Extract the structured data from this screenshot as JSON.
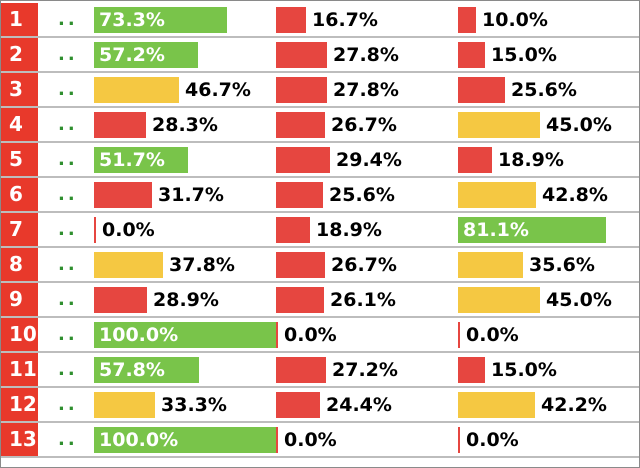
{
  "colors": {
    "green": "#79c44a",
    "red": "#e64640",
    "yellow": "#f5c842",
    "row_number_bg": "#e8392b",
    "dots": "#2f8f2f"
  },
  "rows": [
    {
      "num": "1",
      "dots": "..",
      "cells": [
        {
          "label": "73.3%",
          "value": 73.3,
          "color": "green"
        },
        {
          "label": "16.7%",
          "value": 16.7,
          "color": "red"
        },
        {
          "label": "10.0%",
          "value": 10.0,
          "color": "red"
        }
      ]
    },
    {
      "num": "2",
      "dots": "..",
      "cells": [
        {
          "label": "57.2%",
          "value": 57.2,
          "color": "green"
        },
        {
          "label": "27.8%",
          "value": 27.8,
          "color": "red"
        },
        {
          "label": "15.0%",
          "value": 15.0,
          "color": "red"
        }
      ]
    },
    {
      "num": "3",
      "dots": "..",
      "cells": [
        {
          "label": "46.7%",
          "value": 46.7,
          "color": "yellow"
        },
        {
          "label": "27.8%",
          "value": 27.8,
          "color": "red"
        },
        {
          "label": "25.6%",
          "value": 25.6,
          "color": "red"
        }
      ]
    },
    {
      "num": "4",
      "dots": "..",
      "cells": [
        {
          "label": "28.3%",
          "value": 28.3,
          "color": "red"
        },
        {
          "label": "26.7%",
          "value": 26.7,
          "color": "red"
        },
        {
          "label": "45.0%",
          "value": 45.0,
          "color": "yellow"
        }
      ]
    },
    {
      "num": "5",
      "dots": "..",
      "cells": [
        {
          "label": "51.7%",
          "value": 51.7,
          "color": "green"
        },
        {
          "label": "29.4%",
          "value": 29.4,
          "color": "red"
        },
        {
          "label": "18.9%",
          "value": 18.9,
          "color": "red"
        }
      ]
    },
    {
      "num": "6",
      "dots": "..",
      "cells": [
        {
          "label": "31.7%",
          "value": 31.7,
          "color": "red"
        },
        {
          "label": "25.6%",
          "value": 25.6,
          "color": "red"
        },
        {
          "label": "42.8%",
          "value": 42.8,
          "color": "yellow"
        }
      ]
    },
    {
      "num": "7",
      "dots": "..",
      "cells": [
        {
          "label": "0.0%",
          "value": 0.0,
          "color": "red"
        },
        {
          "label": "18.9%",
          "value": 18.9,
          "color": "red"
        },
        {
          "label": "81.1%",
          "value": 81.1,
          "color": "green"
        }
      ]
    },
    {
      "num": "8",
      "dots": "..",
      "cells": [
        {
          "label": "37.8%",
          "value": 37.8,
          "color": "yellow"
        },
        {
          "label": "26.7%",
          "value": 26.7,
          "color": "red"
        },
        {
          "label": "35.6%",
          "value": 35.6,
          "color": "yellow"
        }
      ]
    },
    {
      "num": "9",
      "dots": "..",
      "cells": [
        {
          "label": "28.9%",
          "value": 28.9,
          "color": "red"
        },
        {
          "label": "26.1%",
          "value": 26.1,
          "color": "red"
        },
        {
          "label": "45.0%",
          "value": 45.0,
          "color": "yellow"
        }
      ]
    },
    {
      "num": "10",
      "dots": "..",
      "cells": [
        {
          "label": "100.0%",
          "value": 100.0,
          "color": "green"
        },
        {
          "label": "0.0%",
          "value": 0.0,
          "color": "red"
        },
        {
          "label": "0.0%",
          "value": 0.0,
          "color": "red"
        }
      ]
    },
    {
      "num": "11",
      "dots": "..",
      "cells": [
        {
          "label": "57.8%",
          "value": 57.8,
          "color": "green"
        },
        {
          "label": "27.2%",
          "value": 27.2,
          "color": "red"
        },
        {
          "label": "15.0%",
          "value": 15.0,
          "color": "red"
        }
      ]
    },
    {
      "num": "12",
      "dots": "..",
      "cells": [
        {
          "label": "33.3%",
          "value": 33.3,
          "color": "yellow"
        },
        {
          "label": "24.4%",
          "value": 24.4,
          "color": "red"
        },
        {
          "label": "42.2%",
          "value": 42.2,
          "color": "yellow"
        }
      ]
    },
    {
      "num": "13",
      "dots": "..",
      "cells": [
        {
          "label": "100.0%",
          "value": 100.0,
          "color": "green"
        },
        {
          "label": "0.0%",
          "value": 0.0,
          "color": "red"
        },
        {
          "label": "0.0%",
          "value": 0.0,
          "color": "red"
        }
      ]
    }
  ]
}
